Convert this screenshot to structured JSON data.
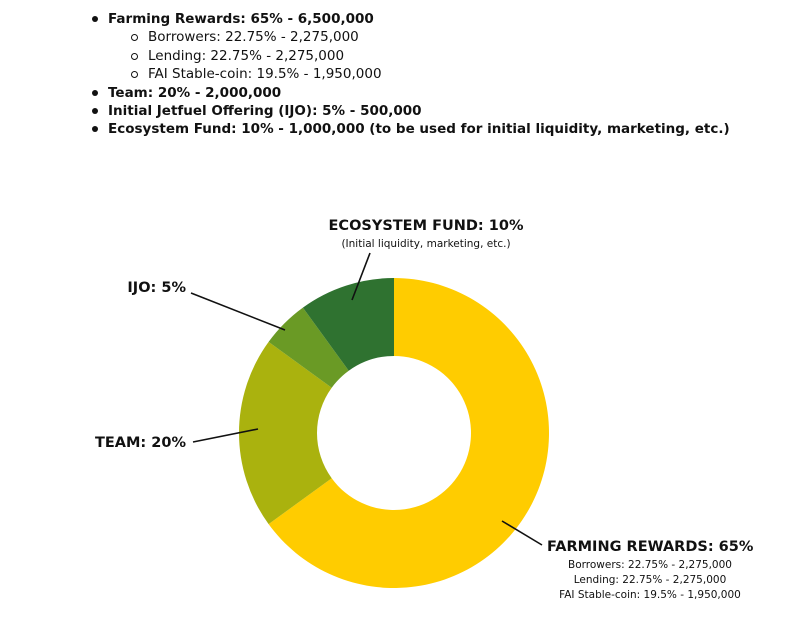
{
  "bullets": [
    {
      "text": "Farming Rewards: 65% - 6,500,000",
      "sub": [
        "Borrowers: 22.75% - 2,275,000",
        "Lending: 22.75% - 2,275,000",
        "FAI Stable-coin: 19.5% - 1,950,000"
      ]
    },
    {
      "text": "Team: 20% - 2,000,000"
    },
    {
      "text": "Initial Jetfuel Offering (IJO): 5% - 500,000"
    },
    {
      "text": "Ecosystem Fund: 10% - 1,000,000 (to be used for initial liquidity, marketing, etc.)"
    }
  ],
  "chart_data": {
    "type": "pie",
    "variant": "donut",
    "slices": [
      {
        "key": "farming",
        "value": 65,
        "color": "#FFCC00",
        "label": "FARMING REWARDS: 65%",
        "sublabels": [
          "Borrowers: 22.75% - 2,275,000",
          "Lending: 22.75% - 2,275,000",
          "FAI Stable-coin: 19.5% - 1,950,000"
        ]
      },
      {
        "key": "team",
        "value": 20,
        "color": "#AAB20E",
        "label": "TEAM: 20%",
        "sublabels": []
      },
      {
        "key": "ijo",
        "value": 5,
        "color": "#6A9A25",
        "label": "IJO: 5%",
        "sublabels": []
      },
      {
        "key": "ecosystem",
        "value": 10,
        "color": "#2F7230",
        "label": "ECOSYSTEM FUND: 10%",
        "sublabels": [
          "(Initial liquidity, marketing, etc.)"
        ]
      }
    ],
    "start": "12 o'clock",
    "direction": "clockwise"
  }
}
